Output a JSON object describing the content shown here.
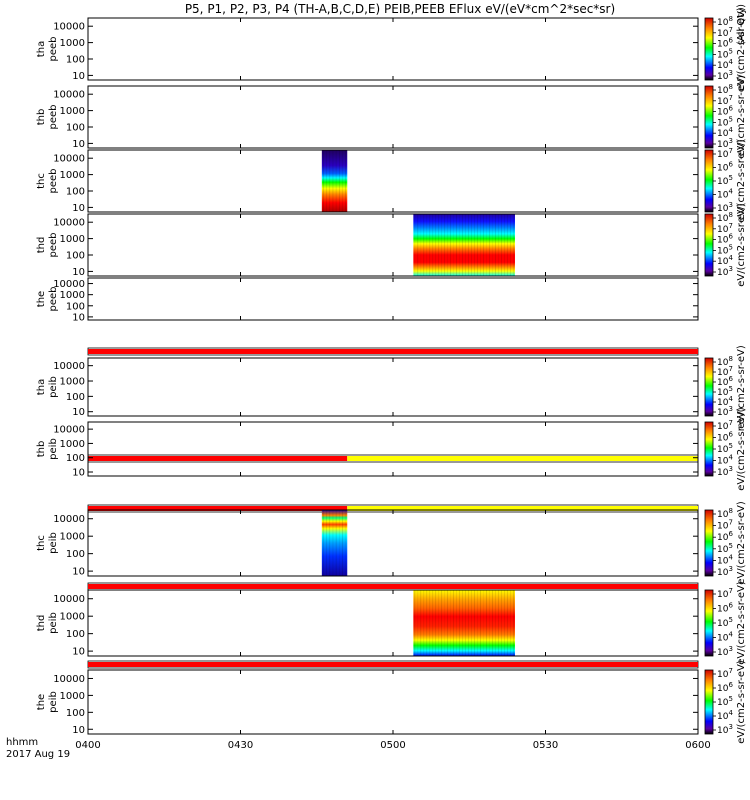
{
  "title": "P5, P1, P2, P3, P4 (TH-A,B,C,D,E) PEIB,PEEB EFlux eV/(eV*cm^2*sec*sr)",
  "time_axis": {
    "ticks": [
      "0400",
      "0430",
      "0500",
      "0530",
      "0600"
    ],
    "format_label": "hhmm",
    "date_label": "2017 Aug 19"
  },
  "right_edge_label": "(All Qty)",
  "colors": {
    "flag_red": "#ff0000",
    "flag_yellow": "#ffff00",
    "frame": "#000000"
  },
  "chart_data": {
    "type": "heatmap",
    "x_range_hhmm": [
      "0400",
      "0600"
    ],
    "y_scale": "log",
    "y_ticks": [
      "10",
      "100",
      "1000",
      "10000"
    ],
    "panels": [
      {
        "label1": "tha",
        "label2": "peeb",
        "data_spans": [],
        "colorbar": {
          "exponents": [
            3,
            4,
            5,
            6,
            7,
            8
          ],
          "unit_label": "eV/(cm2-s-sr-eV)"
        }
      },
      {
        "label1": "thb",
        "label2": "peeb",
        "data_spans": [],
        "colorbar": {
          "exponents": [
            3,
            4,
            5,
            6,
            7,
            8
          ],
          "unit_label": "eV/(cm2-s-sr-eV)"
        }
      },
      {
        "label1": "thc",
        "label2": "peeb",
        "data_spans": [
          {
            "start": "0446",
            "end": "0451",
            "style": "peeb_c"
          }
        ],
        "colorbar": {
          "exponents": [
            3,
            4,
            5,
            6,
            7
          ],
          "unit_label": "eV/(cm2-s-sr-eV)"
        }
      },
      {
        "label1": "thd",
        "label2": "peeb",
        "data_spans": [
          {
            "start": "0504",
            "end": "0524",
            "style": "peeb_d"
          }
        ],
        "colorbar": {
          "exponents": [
            3,
            4,
            5,
            6,
            7,
            8
          ],
          "unit_label": "eV/(cm2-s-sr-eV)"
        }
      },
      {
        "label1": "the",
        "label2": "peeb",
        "data_spans": [],
        "colorbar": null,
        "flag_bar": [
          {
            "start": "0400",
            "end": "0600",
            "color": "red"
          }
        ]
      },
      {
        "label1": "tha",
        "label2": "peib",
        "data_spans": [],
        "colorbar": {
          "exponents": [
            3,
            4,
            5,
            6,
            7,
            8
          ],
          "unit_label": "eV/(cm2-s-sr-eV)"
        },
        "flag_bar": [
          {
            "start": "0400",
            "end": "0451",
            "color": "red"
          },
          {
            "start": "0451",
            "end": "0600",
            "color": "yellow"
          }
        ]
      },
      {
        "label1": "thb",
        "label2": "peib",
        "data_spans": [],
        "colorbar": {
          "exponents": [
            3,
            4,
            5,
            6,
            7
          ],
          "unit_label": "eV/(cm2-s-sr-eV)"
        },
        "flag_bar": [
          {
            "start": "0400",
            "end": "0451",
            "color": "red"
          },
          {
            "start": "0451",
            "end": "0600",
            "color": "yellow"
          }
        ]
      },
      {
        "label1": "thc",
        "label2": "peib",
        "data_spans": [
          {
            "start": "0446",
            "end": "0451",
            "style": "peib_c"
          }
        ],
        "colorbar": {
          "exponents": [
            3,
            4,
            5,
            6,
            7,
            8
          ],
          "unit_label": "eV/(cm2-s-sr-eV)"
        },
        "flag_bar": [
          {
            "start": "0400",
            "end": "0600",
            "color": "red"
          }
        ]
      },
      {
        "label1": "thd",
        "label2": "peib",
        "data_spans": [
          {
            "start": "0504",
            "end": "0524",
            "style": "peib_d"
          }
        ],
        "colorbar": {
          "exponents": [
            3,
            4,
            5,
            6,
            7
          ],
          "unit_label": "eV/(cm2-s-sr-eV)"
        },
        "flag_bar": [
          {
            "start": "0400",
            "end": "0600",
            "color": "red"
          }
        ]
      },
      {
        "label1": "the",
        "label2": "peib",
        "data_spans": [],
        "colorbar": {
          "exponents": [
            3,
            4,
            5,
            6,
            7
          ],
          "unit_label": "eV/(cm2-s-sr-eV)"
        }
      }
    ]
  }
}
